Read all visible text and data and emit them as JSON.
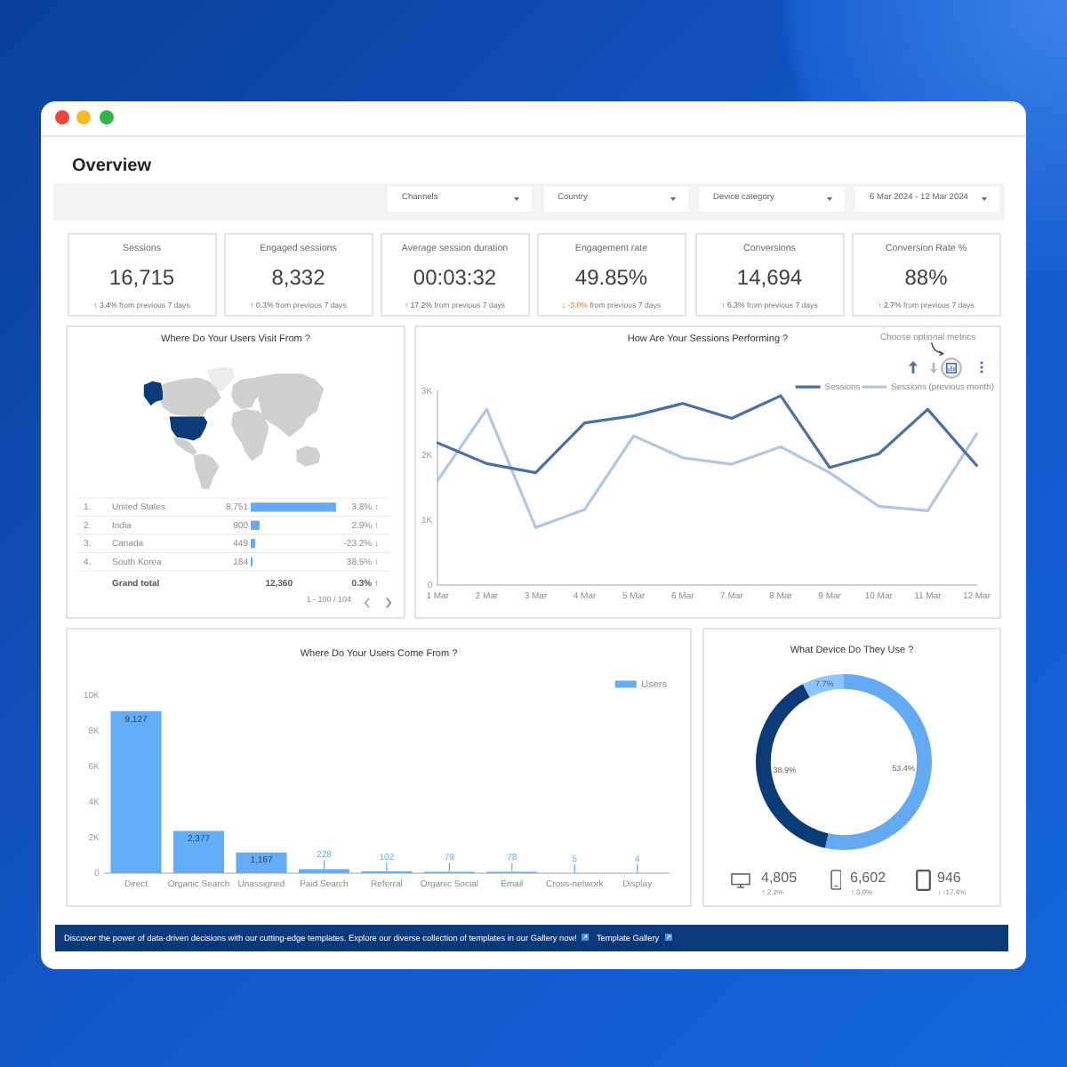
{
  "chart_data": [
    {
      "type": "other",
      "title": "Overview",
      "annotations": [
        "Channels",
        "Country",
        "Device category",
        "6 Mar 2024 - 12 Mar 2024"
      ]
    },
    {
      "type": "other",
      "title": "Sessions",
      "color": "#5f6368",
      "annotations": [
        "16,715",
        "↑ 3.4%",
        "from previous 7 days"
      ]
    },
    {
      "type": "other",
      "title": "Engaged sessions",
      "color": "#5f6368",
      "annotations": [
        "8,332",
        "↑ 0.3%",
        "from previous 7 days"
      ]
    },
    {
      "type": "other",
      "title": "Average session duration",
      "color": "#5f6368",
      "annotations": [
        "00:03:32",
        "↑ 17.2%",
        "from previous 7 days"
      ]
    },
    {
      "type": "other",
      "title": "Engagement rate",
      "color": "#e8710a",
      "annotations": [
        "49.85%",
        "↓ -3.0%",
        "from previous 7 days"
      ]
    },
    {
      "type": "other",
      "title": "Conversions",
      "color": "#5f6368",
      "annotations": [
        "14,694",
        "↑ 6.3%",
        "from previous 7 days"
      ]
    },
    {
      "type": "other",
      "title": "Conversion Rate %",
      "color": "#5f6368",
      "annotations": [
        "88%",
        "↑ 2.7%",
        "from previous 7 days"
      ]
    },
    {
      "type": "bar",
      "orientation": "horizontal",
      "title": "Where Do Your Users Visit From ?",
      "categories": [
        "United States",
        "India",
        "Canada",
        "South Korea"
      ],
      "values": [
        8751,
        900,
        449,
        184
      ],
      "value_labels": [
        "8,751",
        "900",
        "449",
        "184"
      ],
      "color": "#64aaf5",
      "annotations": [
        "1.",
        "2.",
        "3.",
        "4.",
        "3.8% ↑",
        "2.9% ↑",
        "-23.2% ↓",
        "38.5% ↑",
        "Grand total",
        "12,360",
        "0.3% ↑",
        "1 - 100 / 104"
      ]
    },
    {
      "type": "line",
      "title": "How Are Your Sessions Performing ?",
      "categories": [
        "1 Mar",
        "2 Mar",
        "3 Mar",
        "4 Mar",
        "5 Mar",
        "6 Mar",
        "7 Mar",
        "8 Mar",
        "9 Mar",
        "10 Mar",
        "11 Mar",
        "12 Mar"
      ],
      "series": [
        {
          "name": "Sessions",
          "color": "#4a6fa5",
          "values": [
            2200,
            1880,
            1740,
            2510,
            2620,
            2810,
            2580,
            2930,
            1820,
            2030,
            2720,
            1850
          ]
        },
        {
          "name": "Sessions (previous month)",
          "color": "#b3c6e0",
          "values": [
            1620,
            2720,
            890,
            1170,
            2310,
            1970,
            1870,
            2140,
            1740,
            1220,
            1150,
            2340
          ]
        }
      ],
      "ylim": [
        0,
        3000
      ],
      "yticks": [
        0,
        {
          "value": 1000,
          "label": "1K"
        },
        {
          "value": 2000,
          "label": "2K"
        },
        {
          "value": 3000,
          "label": "3K"
        }
      ],
      "legend": "top right",
      "marker": "none",
      "annotations": [
        "Choose optional metrics"
      ]
    },
    {
      "type": "bar",
      "title": "Where Do Your Users Come From ?",
      "categories": [
        "Direct",
        "Organic Search",
        "Unassigned",
        "Paid Search",
        "Referral",
        "Organic Social",
        "Email",
        "Cross-network",
        "Display"
      ],
      "series": [
        {
          "name": "Users",
          "color": "#63acf8",
          "values": [
            9127,
            2377,
            1167,
            228,
            102,
            79,
            78,
            5,
            4
          ],
          "value_labels": [
            "9,127",
            "2,377",
            "1,167",
            "228",
            "102",
            "79",
            "78",
            "5",
            "4"
          ]
        }
      ],
      "ylim": [
        0,
        10000
      ],
      "yticks": [
        0,
        {
          "value": 2000,
          "label": "2K"
        },
        {
          "value": 4000,
          "label": "4K"
        },
        {
          "value": 6000,
          "label": "6K"
        },
        {
          "value": 8000,
          "label": "8K"
        },
        {
          "value": 10000,
          "label": "10K"
        }
      ],
      "legend": "top right"
    },
    {
      "type": "donut",
      "title": "What Device Do They Use ?",
      "categories": [
        null,
        null,
        null
      ],
      "values": [
        53.4,
        38.9,
        7.7
      ],
      "colors": [
        "#64aaf2",
        "#0c3c78",
        "#8cc6ff"
      ],
      "value_labels": [
        "53.4%",
        "38.9%",
        "7.7%"
      ],
      "annotations": [
        "4,805",
        "↑ 2.2%",
        "6,602",
        "↑ 3.0%",
        "946",
        "↓ -17.4%"
      ]
    },
    {
      "type": "other",
      "annotations": [
        "Discover the power of data-driven decisions with our cutting-edge templates. Explore our diverse collection of templates in our Gallery now!",
        "Template Gallery"
      ]
    }
  ]
}
